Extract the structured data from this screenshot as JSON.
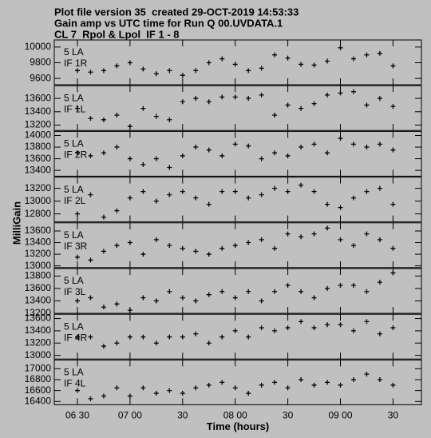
{
  "header": [
    "Plot file version 35  created 29-OCT-2019 14:53:33",
    "Gain amp vs UTC time for Run Q 00.UVDATA.1",
    "CL 7  Rpol & Lpol  IF 1 - 8"
  ],
  "y_label": "MilliGain",
  "chart_data": [
    {
      "type": "scatter",
      "annotation": [
        "5 LA",
        "IF 1R"
      ],
      "color": "#000000",
      "marker": "+",
      "x": [
        6.5,
        6.625,
        6.75,
        6.875,
        7.0,
        7.125,
        7.25,
        7.375,
        7.5,
        7.625,
        7.75,
        7.875,
        8.0,
        8.125,
        8.25,
        8.375,
        8.5,
        8.625,
        8.75,
        8.875,
        9.0,
        9.125,
        9.25,
        9.375,
        9.5
      ],
      "values": [
        9700,
        9680,
        9700,
        9760,
        9800,
        9720,
        9660,
        9700,
        9640,
        9700,
        9800,
        9850,
        9780,
        9700,
        9730,
        9900,
        9860,
        9780,
        9770,
        9820,
        9990,
        9850,
        9900,
        9920,
        9760
      ],
      "xlim": [
        6.28,
        9.77
      ],
      "ylim": [
        9520,
        10090
      ],
      "yticks": [
        9600,
        9800,
        10000
      ]
    },
    {
      "type": "scatter",
      "annotation": [
        "5 LA",
        "IF 1L"
      ],
      "color": "#000000",
      "marker": "+",
      "x": [
        6.5,
        6.625,
        6.75,
        6.875,
        7.0,
        7.125,
        7.25,
        7.375,
        7.5,
        7.625,
        7.75,
        7.875,
        8.0,
        8.125,
        8.25,
        8.375,
        8.5,
        8.625,
        8.75,
        8.875,
        9.0,
        9.125,
        9.25,
        9.375,
        9.5
      ],
      "values": [
        13450,
        13300,
        13280,
        13350,
        13180,
        13450,
        13330,
        13280,
        13550,
        13600,
        13550,
        13620,
        13620,
        13600,
        13650,
        13350,
        13500,
        13450,
        13520,
        13650,
        13680,
        13700,
        13500,
        13600,
        13480
      ],
      "xlim": [
        6.28,
        9.77
      ],
      "ylim": [
        13120,
        13790
      ],
      "yticks": [
        13200,
        13400,
        13600
      ]
    },
    {
      "type": "scatter",
      "annotation": [
        "5 LA",
        "IF 2R"
      ],
      "color": "#000000",
      "marker": "+",
      "x": [
        6.5,
        6.625,
        6.75,
        6.875,
        7.0,
        7.125,
        7.25,
        7.375,
        7.5,
        7.625,
        7.75,
        7.875,
        8.0,
        8.125,
        8.25,
        8.375,
        8.5,
        8.625,
        8.75,
        8.875,
        9.0,
        9.125,
        9.25,
        9.375,
        9.5
      ],
      "values": [
        13700,
        13650,
        13700,
        13800,
        13600,
        13500,
        13600,
        13450,
        13650,
        13800,
        13750,
        13650,
        13850,
        13820,
        13600,
        13700,
        13650,
        13800,
        13850,
        13700,
        13950,
        13850,
        13800,
        13850,
        13750
      ],
      "xlim": [
        6.28,
        9.77
      ],
      "ylim": [
        13300,
        14070
      ],
      "yticks": [
        13400,
        13600,
        13800,
        14000
      ]
    },
    {
      "type": "scatter",
      "annotation": [
        "5 LA",
        "IF 2L"
      ],
      "color": "#000000",
      "marker": "+",
      "x": [
        6.5,
        6.625,
        6.75,
        6.875,
        7.0,
        7.125,
        7.25,
        7.375,
        7.5,
        7.625,
        7.75,
        7.875,
        8.0,
        8.125,
        8.25,
        8.375,
        8.5,
        8.625,
        8.75,
        8.875,
        9.0,
        9.125,
        9.25,
        9.375,
        9.5
      ],
      "values": [
        12800,
        13100,
        12750,
        12850,
        13050,
        13150,
        13000,
        13100,
        13150,
        13050,
        12950,
        13150,
        13150,
        13050,
        13100,
        13200,
        13150,
        13250,
        13150,
        12950,
        12900,
        13050,
        13150,
        13200,
        12950
      ],
      "xlim": [
        6.28,
        9.77
      ],
      "ylim": [
        12675,
        13375
      ],
      "yticks": [
        12800,
        13000,
        13200
      ]
    },
    {
      "type": "scatter",
      "annotation": [
        "5 LA",
        "IF 3R"
      ],
      "color": "#000000",
      "marker": "+",
      "x": [
        6.5,
        6.625,
        6.75,
        6.875,
        7.0,
        7.125,
        7.25,
        7.375,
        7.5,
        7.625,
        7.75,
        7.875,
        8.0,
        8.125,
        8.25,
        8.375,
        8.5,
        8.625,
        8.75,
        8.875,
        9.0,
        9.125,
        9.25,
        9.375,
        9.5
      ],
      "values": [
        13150,
        13100,
        13250,
        13350,
        13400,
        13200,
        13450,
        13350,
        13300,
        13250,
        13200,
        13300,
        13350,
        13400,
        13450,
        13300,
        13550,
        13500,
        13550,
        13650,
        13450,
        13350,
        13550,
        13450,
        13300
      ],
      "xlim": [
        6.28,
        9.77
      ],
      "ylim": [
        12970,
        13740
      ],
      "yticks": [
        13000,
        13200,
        13400,
        13600
      ]
    },
    {
      "type": "scatter",
      "annotation": [
        "5 LA",
        "IF 3L"
      ],
      "color": "#000000",
      "marker": "+",
      "x": [
        6.5,
        6.625,
        6.75,
        6.875,
        7.0,
        7.125,
        7.25,
        7.375,
        7.5,
        7.625,
        7.75,
        7.875,
        8.0,
        8.125,
        8.25,
        8.375,
        8.5,
        8.625,
        8.75,
        8.875,
        9.0,
        9.125,
        9.25,
        9.375,
        9.5
      ],
      "values": [
        13400,
        13450,
        13300,
        13350,
        13250,
        13450,
        13400,
        13550,
        13450,
        13400,
        13500,
        13550,
        13450,
        13550,
        13400,
        13550,
        13650,
        13550,
        13450,
        13600,
        13650,
        13650,
        13550,
        13700,
        13850
      ],
      "xlim": [
        6.28,
        9.77
      ],
      "ylim": [
        13200,
        13920
      ],
      "yticks": [
        13200,
        13400,
        13600,
        13800
      ]
    },
    {
      "type": "scatter",
      "annotation": [
        "5 LA",
        "IF 4R"
      ],
      "color": "#000000",
      "marker": "+",
      "x": [
        6.5,
        6.625,
        6.75,
        6.875,
        7.0,
        7.125,
        7.25,
        7.375,
        7.5,
        7.625,
        7.75,
        7.875,
        8.0,
        8.125,
        8.25,
        8.375,
        8.5,
        8.625,
        8.75,
        8.875,
        9.0,
        9.125,
        9.25,
        9.375,
        9.5
      ],
      "values": [
        13300,
        13300,
        13150,
        13200,
        13300,
        13300,
        13200,
        13300,
        13300,
        13350,
        13200,
        13300,
        13400,
        13300,
        13450,
        13400,
        13450,
        13550,
        13450,
        13500,
        13500,
        13400,
        13550,
        13350,
        13450
      ],
      "xlim": [
        6.28,
        9.77
      ],
      "ylim": [
        12940,
        13670
      ],
      "yticks": [
        13000,
        13200,
        13400,
        13600
      ]
    },
    {
      "type": "scatter",
      "annotation": [
        "5 LA",
        "IF 4L"
      ],
      "color": "#000000",
      "marker": "+",
      "x": [
        6.5,
        6.625,
        6.75,
        6.875,
        7.0,
        7.125,
        7.25,
        7.375,
        7.5,
        7.625,
        7.75,
        7.875,
        8.0,
        8.125,
        8.25,
        8.375,
        8.5,
        8.625,
        8.75,
        8.875,
        9.0,
        9.125,
        9.25,
        9.375,
        9.5
      ],
      "values": [
        16600,
        16450,
        16500,
        16650,
        16500,
        16650,
        16550,
        16600,
        16550,
        16650,
        16700,
        16750,
        16650,
        16550,
        16700,
        16750,
        16650,
        16800,
        16700,
        16750,
        16700,
        16800,
        16900,
        16800,
        16700
      ],
      "xlim": [
        6.28,
        9.77
      ],
      "ylim": [
        16340,
        17160
      ],
      "yticks": [
        16400,
        16600,
        16800,
        17000
      ],
      "x_label": "Time (hours)",
      "xticks": [
        {
          "value": 6.5,
          "label": "06 30"
        },
        {
          "value": 7.0,
          "label": "07 00"
        },
        {
          "value": 7.5,
          "label": "30"
        },
        {
          "value": 8.0,
          "label": "08 00"
        },
        {
          "value": 8.5,
          "label": "30"
        },
        {
          "value": 9.0,
          "label": "09 00"
        },
        {
          "value": 9.5,
          "label": "30"
        }
      ]
    }
  ]
}
